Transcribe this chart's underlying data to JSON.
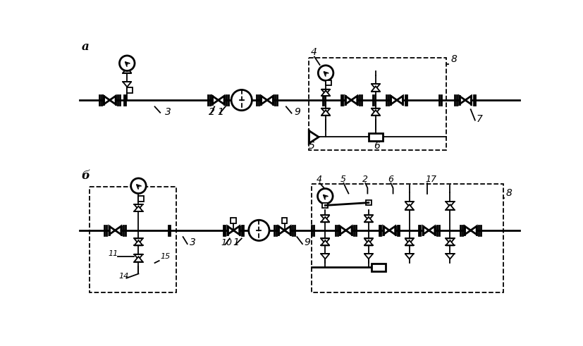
{
  "bg_color": "#ffffff",
  "lc": "#000000",
  "lw": 2.0,
  "lw2": 1.3,
  "label_a": "а",
  "label_b": "б"
}
